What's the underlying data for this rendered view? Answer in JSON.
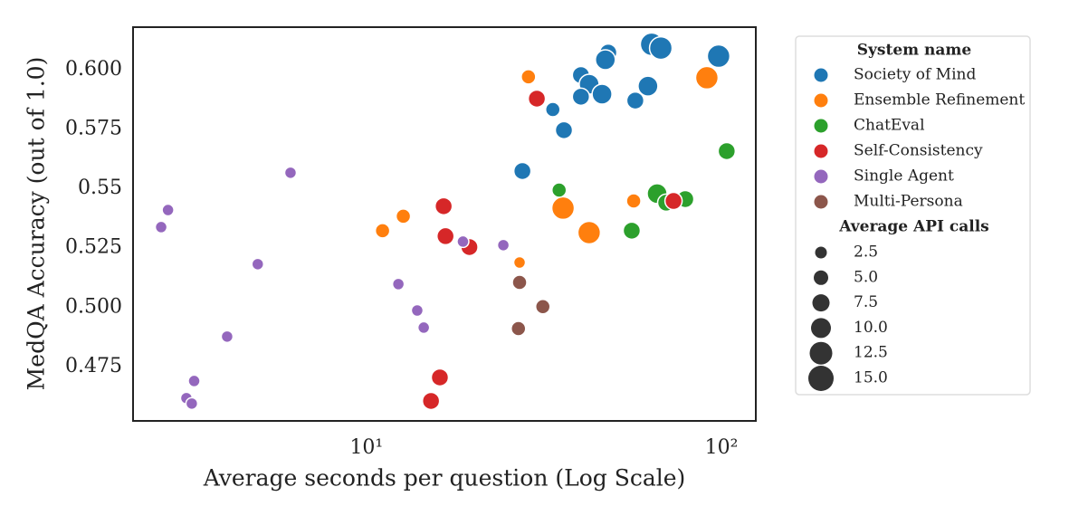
{
  "chart_data": {
    "type": "scatter",
    "xlabel": "Average seconds per question (Log Scale)",
    "ylabel": "MedQA Accuracy (out of 1.0)",
    "xscale": "log",
    "xlim": [
      2.2,
      125
    ],
    "ylim": [
      0.4521,
      0.6179
    ],
    "xticks": [
      {
        "value": 10,
        "label": "10¹"
      },
      {
        "value": 100,
        "label": "10²"
      }
    ],
    "yticks": [
      0.475,
      {
        "value": 0.5,
        "label": "0.500"
      },
      0.525,
      0.55,
      0.575,
      {
        "value": 0.6,
        "label": "0.600"
      }
    ],
    "grid": false,
    "legend_title": "System name",
    "legend_position": "outside-right",
    "size_legend": {
      "title": "Average API calls",
      "values": [
        2.5,
        {
          "value": 5,
          "label": "5.0"
        },
        7.5,
        {
          "value": 10,
          "label": "10.0"
        },
        12.5,
        {
          "value": 15,
          "label": "15.0"
        }
      ]
    },
    "series": [
      {
        "name": "Society of Mind",
        "color": "#1f77b4",
        "x": [
          48.0,
          63.6,
          67.5,
          98.2,
          47.1,
          40.2,
          42.4,
          46.1,
          40.2,
          62.1,
          57.2,
          33.5,
          36.0,
          27.5
        ],
        "values": [
          0.6072,
          0.6107,
          0.6091,
          0.6057,
          0.6042,
          0.5977,
          0.5939,
          0.5897,
          0.5886,
          0.5931,
          0.587,
          0.5832,
          0.5745,
          0.5573
        ],
        "sizes": [
          7.5,
          12.5,
          12.5,
          12.5,
          10,
          7.5,
          10,
          10,
          7.5,
          10,
          7.5,
          5,
          7.5,
          7.5
        ]
      },
      {
        "name": "Ensemble Refinement",
        "color": "#ff7f0e",
        "x": [
          28.6,
          91.0,
          35.8,
          42.4,
          56.6,
          12.7,
          11.1,
          27.0
        ],
        "values": [
          0.597,
          0.5966,
          0.5417,
          0.5314,
          0.5447,
          0.5383,
          0.5322,
          0.5188
        ],
        "sizes": [
          5,
          12.5,
          12.5,
          12.5,
          5,
          5,
          5,
          2.5
        ]
      },
      {
        "name": "ChatEval",
        "color": "#2ca02c",
        "x": [
          103.5,
          34.9,
          65.9,
          69.9,
          79.1,
          55.9
        ],
        "values": [
          0.5657,
          0.5493,
          0.5478,
          0.544,
          0.5455,
          0.5322
        ],
        "sizes": [
          7.5,
          5,
          10,
          7.5,
          7.5,
          7.5
        ]
      },
      {
        "name": "Self-Consistency",
        "color": "#d62728",
        "x": [
          30.2,
          73.3,
          16.5,
          16.7,
          19.5,
          16.1,
          15.2
        ],
        "values": [
          0.5878,
          0.5447,
          0.5425,
          0.5299,
          0.5253,
          0.4704,
          0.4605
        ],
        "sizes": [
          7.5,
          7.5,
          7.5,
          7.5,
          7.5,
          7.5,
          7.5
        ]
      },
      {
        "name": "Single Agent",
        "color": "#9467bd",
        "x": [
          6.11,
          2.76,
          2.64,
          4.94,
          18.7,
          24.3,
          12.3,
          13.9,
          14.5,
          4.05,
          3.27,
          3.11,
          3.22
        ],
        "values": [
          0.5566,
          0.5409,
          0.5337,
          0.5181,
          0.5276,
          0.5261,
          0.5097,
          0.4986,
          0.4914,
          0.4876,
          0.4689,
          0.4617,
          0.4594
        ],
        "sizes": [
          2.5,
          2.5,
          2.5,
          2.5,
          2.5,
          2.5,
          2.5,
          2.5,
          2.5,
          2.5,
          2.5,
          2.5,
          2.5
        ]
      },
      {
        "name": "Multi-Persona",
        "color": "#8c564b",
        "x": [
          27.0,
          31.4,
          26.8
        ],
        "values": [
          0.5104,
          0.5002,
          0.491
        ],
        "sizes": [
          5,
          5,
          5
        ]
      }
    ]
  }
}
